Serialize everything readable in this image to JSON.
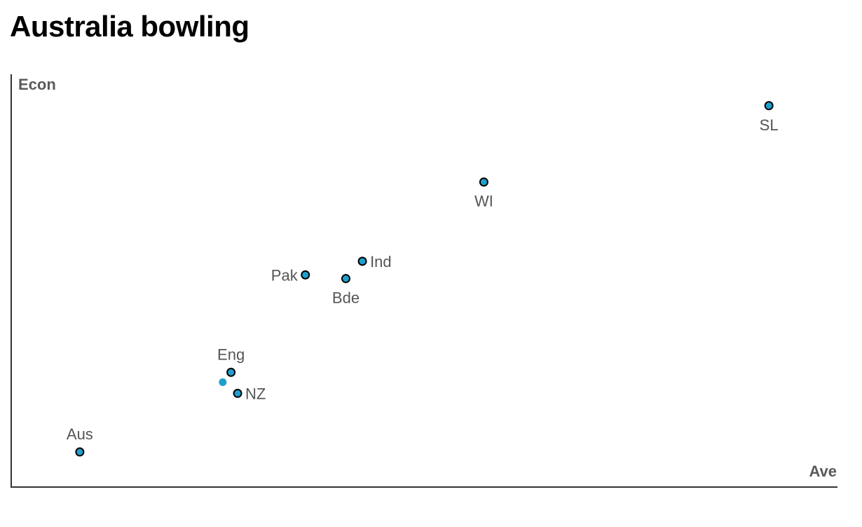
{
  "chart_data": {
    "type": "scatter",
    "title": "Australia bowling",
    "xlabel": "Ave",
    "ylabel": "Econ",
    "xlim": [
      0,
      100
    ],
    "ylim": [
      0,
      100
    ],
    "grid": false,
    "colors": {
      "point_fill": "#1ea0cf",
      "point_stroke": "#000000",
      "axis": "#333333"
    },
    "points": [
      {
        "label": "SL",
        "x": 91.7,
        "y": 92.4
      },
      {
        "label": "WI",
        "x": 57.2,
        "y": 73.9
      },
      {
        "label": "Ind",
        "x": 42.5,
        "y": 54.7
      },
      {
        "label": "Pak",
        "x": 35.6,
        "y": 51.4
      },
      {
        "label": "Bde",
        "x": 40.5,
        "y": 50.5
      },
      {
        "label": "Eng",
        "x": 26.6,
        "y": 27.8
      },
      {
        "label": "",
        "x": 25.6,
        "y": 25.4
      },
      {
        "label": "NZ",
        "x": 27.4,
        "y": 22.7
      },
      {
        "label": "Aus",
        "x": 8.3,
        "y": 8.5
      }
    ]
  }
}
